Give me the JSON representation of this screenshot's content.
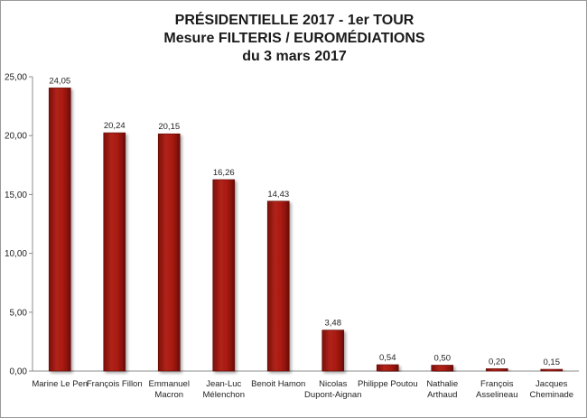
{
  "chart_data": {
    "type": "bar",
    "title_lines": [
      "PRÉSIDENTIELLE 2017 - 1er TOUR",
      "Mesure FILTERIS / EUROMÉDIATIONS",
      "du 3 mars 2017"
    ],
    "categories": [
      [
        "Marine Le Pen"
      ],
      [
        "François Fillon"
      ],
      [
        "Emmanuel",
        "Macron"
      ],
      [
        "Jean-Luc",
        "Mélenchon"
      ],
      [
        "Benoit Hamon"
      ],
      [
        "Nicolas",
        "Dupont-Aignan"
      ],
      [
        "Philippe Poutou"
      ],
      [
        "Nathalie",
        "Arthaud"
      ],
      [
        "François",
        "Asselineau"
      ],
      [
        "Jacques",
        "Cheminade"
      ]
    ],
    "values": [
      24.05,
      20.24,
      20.15,
      16.26,
      14.43,
      3.48,
      0.54,
      0.5,
      0.2,
      0.15
    ],
    "value_labels": [
      "24,05",
      "20,24",
      "20,15",
      "16,26",
      "14,43",
      "3,48",
      "0,54",
      "0,50",
      "0,20",
      "0,15"
    ],
    "ylim": [
      0,
      25
    ],
    "yticks": [
      0,
      5,
      10,
      15,
      20,
      25
    ],
    "ytick_labels": [
      "0,00",
      "5,00",
      "10,00",
      "15,00",
      "20,00",
      "25,00"
    ],
    "grid": false,
    "bar_color": "#a81a10",
    "bar_edge_color": "#5e0a05",
    "xlabel": "",
    "ylabel": ""
  }
}
